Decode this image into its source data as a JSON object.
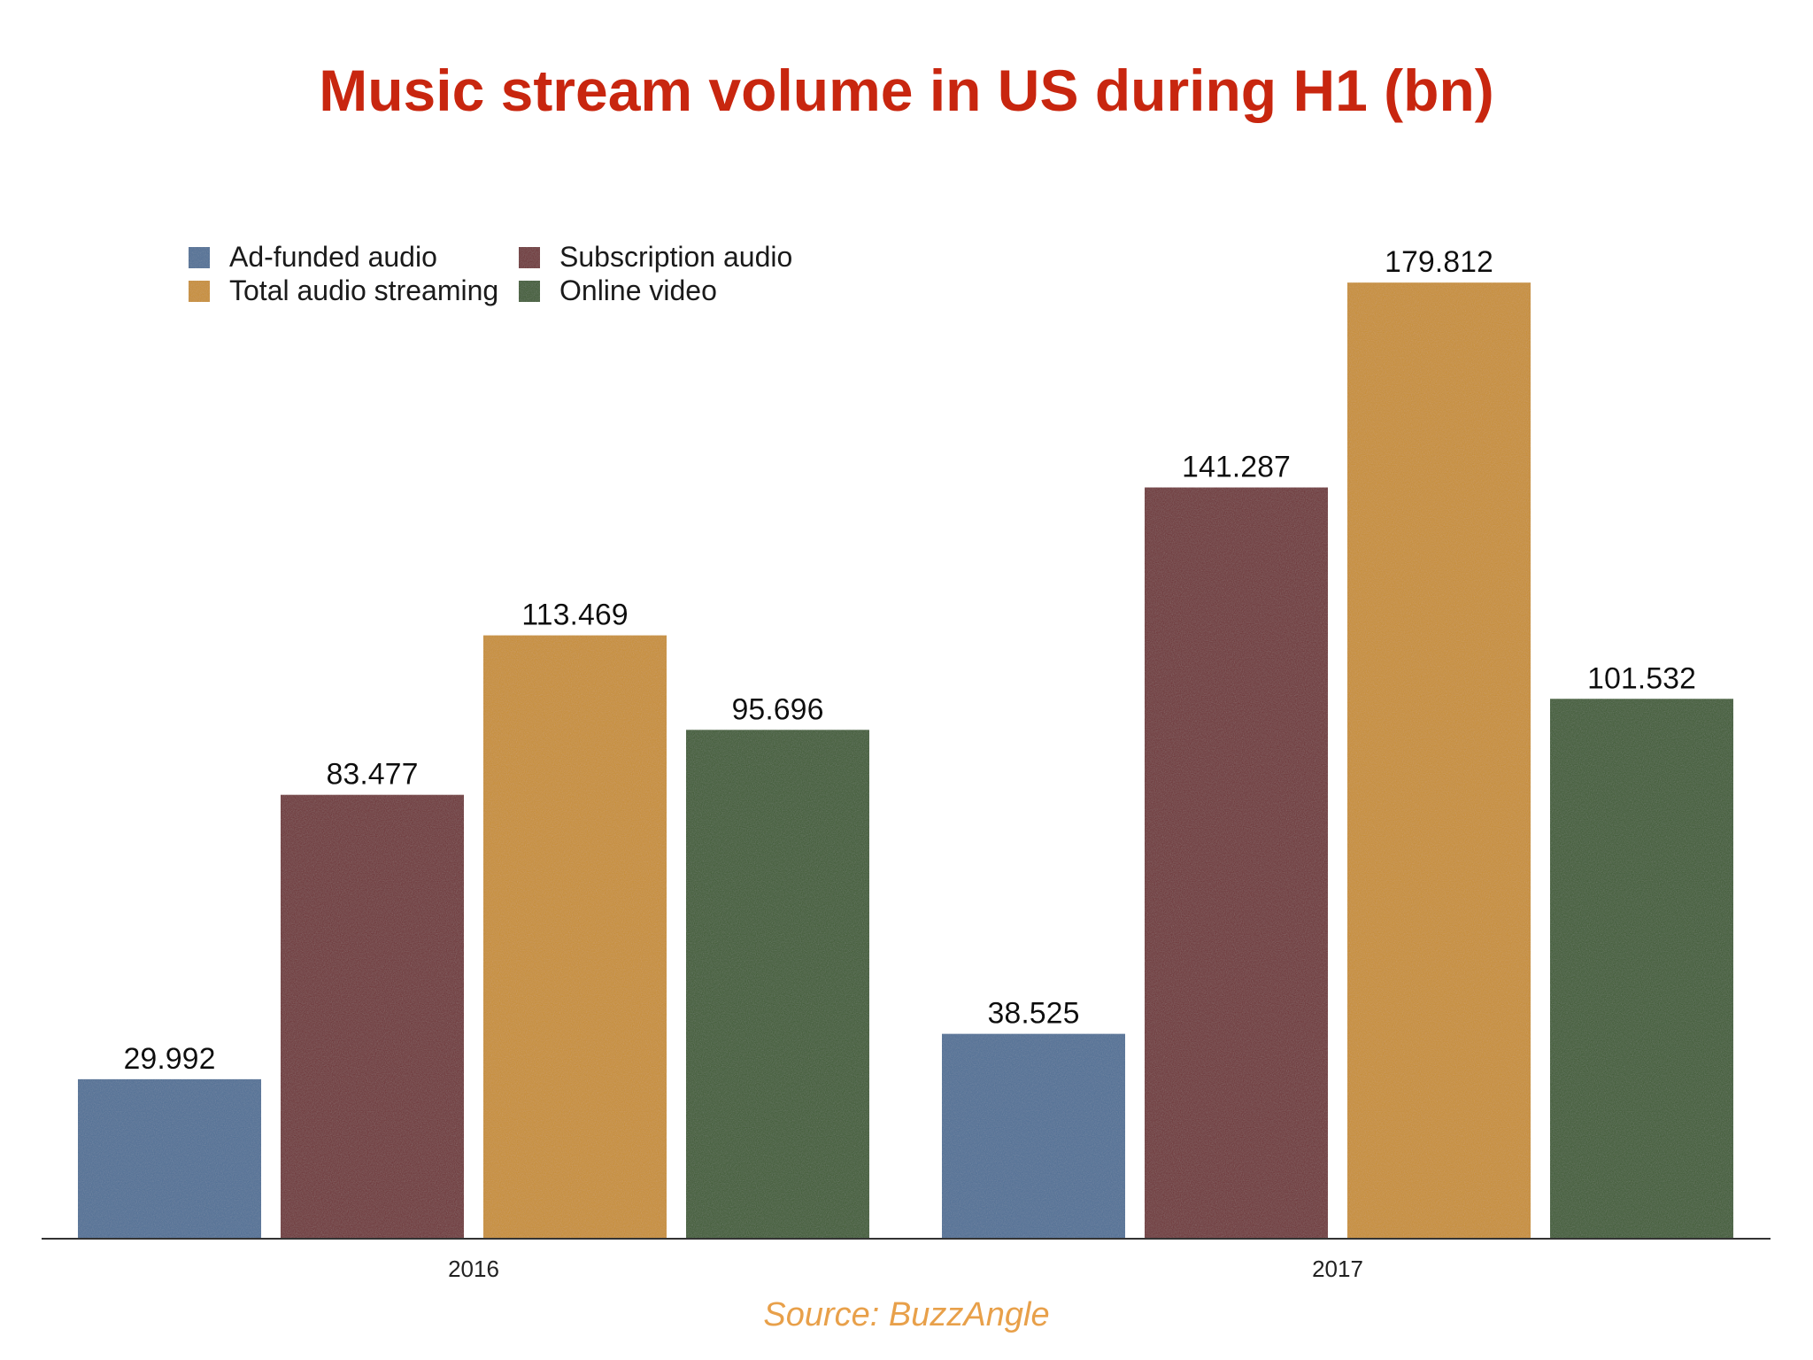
{
  "chart_data": {
    "type": "bar",
    "title": "Music stream volume in US during H1 (bn)",
    "categories": [
      "2016",
      "2017"
    ],
    "series": [
      {
        "name": "Ad-funded audio",
        "color": "#4f6f96",
        "values": [
          29.992,
          38.525
        ]
      },
      {
        "name": "Subscription audio",
        "color": "#6e3236",
        "values": [
          83.477,
          141.287
        ]
      },
      {
        "name": "Total audio streaming",
        "color": "#c98f32",
        "values": [
          113.469,
          179.812
        ]
      },
      {
        "name": "Online video",
        "color": "#3d5c32",
        "values": [
          95.696,
          101.532
        ]
      }
    ],
    "value_labels": [
      [
        "29.992",
        "38.525"
      ],
      [
        "83.477",
        "141.287"
      ],
      [
        "113.469",
        "179.812"
      ],
      [
        "95.696",
        "101.532"
      ]
    ],
    "ylim": [
      0,
      190
    ],
    "xlabel": "",
    "ylabel": "",
    "grid": false,
    "legend_position": "top-left",
    "source": "Source: BuzzAngle"
  },
  "colors": {
    "title": "#c8260f",
    "source": "#e8a04a",
    "axis": "#333333"
  }
}
